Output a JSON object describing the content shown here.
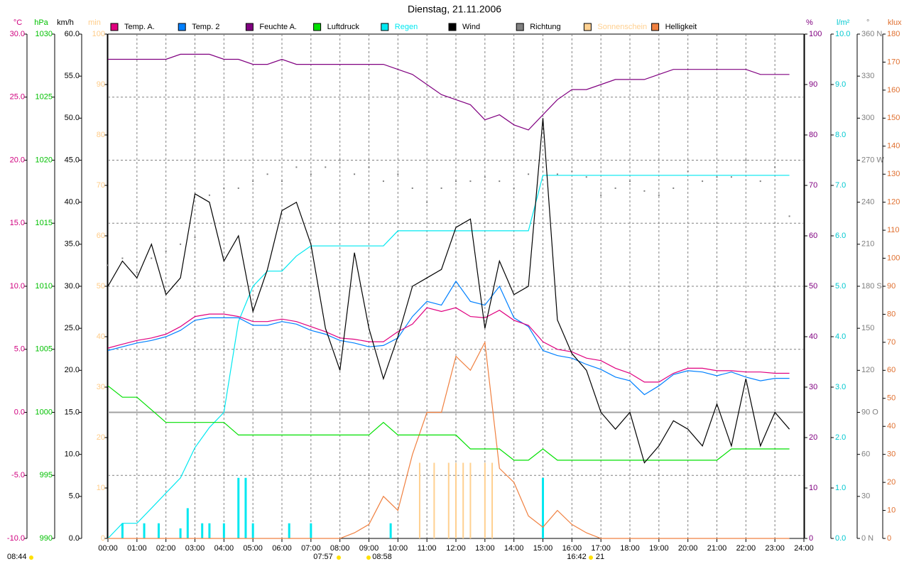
{
  "chart_data": {
    "type": "line",
    "title": "Dienstag, 21.11.2006",
    "grid": true,
    "xlim": [
      0,
      24
    ],
    "xticks": [
      {
        "value": 0,
        "label": "00:00"
      },
      {
        "value": 1,
        "label": "01:00"
      },
      {
        "value": 2,
        "label": "02:00"
      },
      {
        "value": 3,
        "label": "03:00"
      },
      {
        "value": 4,
        "label": "04:00"
      },
      {
        "value": 5,
        "label": "05:00"
      },
      {
        "value": 6,
        "label": "06:00"
      },
      {
        "value": 7,
        "label": "07:00"
      },
      {
        "value": 8,
        "label": "08:00"
      },
      {
        "value": 9,
        "label": "09:00"
      },
      {
        "value": 10,
        "label": "10:00"
      },
      {
        "value": 11,
        "label": "11:00"
      },
      {
        "value": 12,
        "label": "12:00"
      },
      {
        "value": 13,
        "label": "13:00"
      },
      {
        "value": 14,
        "label": "14:00"
      },
      {
        "value": 15,
        "label": "15:00"
      },
      {
        "value": 16,
        "label": "16:00"
      },
      {
        "value": 17,
        "label": "17:00"
      },
      {
        "value": 18,
        "label": "18:00"
      },
      {
        "value": 19,
        "label": "19:00"
      },
      {
        "value": 20,
        "label": "20:00"
      },
      {
        "value": 21,
        "label": "21:00"
      },
      {
        "value": 22,
        "label": "22:00"
      },
      {
        "value": 23,
        "label": "23:00"
      },
      {
        "value": 24,
        "label": "24:00"
      }
    ],
    "x": [
      0,
      0.5,
      1,
      1.5,
      2,
      2.5,
      3,
      3.5,
      4,
      4.5,
      5,
      5.5,
      6,
      6.5,
      7,
      7.5,
      8,
      8.5,
      9,
      9.5,
      10,
      10.5,
      11,
      11.5,
      12,
      12.5,
      13,
      13.5,
      14,
      14.5,
      15,
      15.5,
      16,
      16.5,
      17,
      17.5,
      18,
      18.5,
      19,
      19.5,
      20,
      20.5,
      21,
      21.5,
      22,
      22.5,
      23,
      23.5
    ],
    "axes": [
      {
        "label": "°C",
        "color": "#d0007f",
        "side": "left",
        "lim": [
          -10,
          30
        ],
        "ticks": [
          {
            "value": -10,
            "label": "-10.0"
          },
          {
            "value": -5,
            "label": "-5.0"
          },
          {
            "value": 0,
            "label": "0.0"
          },
          {
            "value": 5,
            "label": "5.0"
          },
          {
            "value": 10,
            "label": "10.0"
          },
          {
            "value": 15,
            "label": "15.0"
          },
          {
            "value": 20,
            "label": "20.0"
          },
          {
            "value": 25,
            "label": "25.0"
          },
          {
            "value": 30,
            "label": "30.0"
          }
        ]
      },
      {
        "label": "hPa",
        "color": "#00c000",
        "side": "left",
        "lim": [
          990,
          1030
        ],
        "ticks": [
          990,
          995,
          1000,
          1005,
          1010,
          1015,
          1020,
          1025,
          1030
        ]
      },
      {
        "label": "km/h",
        "color": "#000000",
        "side": "left",
        "lim": [
          0,
          60
        ],
        "ticks": [
          {
            "value": 0,
            "label": "0.0"
          },
          {
            "value": 5,
            "label": "5.0"
          },
          {
            "value": 10,
            "label": "10.0"
          },
          {
            "value": 15,
            "label": "15.0"
          },
          {
            "value": 20,
            "label": "20.0"
          },
          {
            "value": 25,
            "label": "25.0"
          },
          {
            "value": 30,
            "label": "30.0"
          },
          {
            "value": 35,
            "label": "35.0"
          },
          {
            "value": 40,
            "label": "40.0"
          },
          {
            "value": 45,
            "label": "45.0"
          },
          {
            "value": 50,
            "label": "50.0"
          },
          {
            "value": 55,
            "label": "55.0"
          },
          {
            "value": 60,
            "label": "60.0"
          }
        ]
      },
      {
        "label": "min",
        "color": "#ffcc88",
        "side": "left",
        "lim": [
          0,
          100
        ],
        "ticks": [
          0,
          10,
          20,
          30,
          40,
          50,
          60,
          70,
          80,
          90,
          100
        ]
      },
      {
        "label": "%",
        "color": "#800080",
        "side": "right",
        "lim": [
          0,
          100
        ],
        "ticks": [
          0,
          10,
          20,
          30,
          40,
          50,
          60,
          70,
          80,
          90,
          100
        ]
      },
      {
        "label": "l/m²",
        "color": "#00c8d0",
        "side": "right",
        "lim": [
          0,
          10
        ],
        "ticks": [
          {
            "value": 0,
            "label": "0.0"
          },
          {
            "value": 1,
            "label": "1.0"
          },
          {
            "value": 2,
            "label": "2.0"
          },
          {
            "value": 3,
            "label": "3.0"
          },
          {
            "value": 4,
            "label": "4.0"
          },
          {
            "value": 5,
            "label": "5.0"
          },
          {
            "value": 6,
            "label": "6.0"
          },
          {
            "value": 7,
            "label": "7.0"
          },
          {
            "value": 8,
            "label": "8.0"
          },
          {
            "value": 9,
            "label": "9.0"
          },
          {
            "value": 10,
            "label": "10.0"
          }
        ]
      },
      {
        "label": "°",
        "color": "#808080",
        "side": "right",
        "lim": [
          0,
          360
        ],
        "ticks": [
          {
            "value": 0,
            "label": "0 N"
          },
          30,
          60,
          {
            "value": 90,
            "label": "90 O"
          },
          120,
          150,
          {
            "value": 180,
            "label": "180 S"
          },
          210,
          240,
          {
            "value": 270,
            "label": "270 W"
          },
          300,
          330,
          {
            "value": 360,
            "label": "360 N"
          }
        ]
      },
      {
        "label": "klux",
        "color": "#e07030",
        "side": "right",
        "lim": [
          0,
          180
        ],
        "ticks": [
          0,
          10,
          20,
          30,
          40,
          50,
          60,
          70,
          80,
          90,
          100,
          110,
          120,
          130,
          140,
          150,
          160,
          170,
          180
        ]
      }
    ],
    "series": [
      {
        "name": "Temp. A.",
        "color": "#e0007f",
        "axis": 0,
        "style": "line",
        "values": [
          5.1,
          5.4,
          5.7,
          5.9,
          6.2,
          6.8,
          7.6,
          7.8,
          7.8,
          7.6,
          7.2,
          7.2,
          7.4,
          7.2,
          6.8,
          6.4,
          5.9,
          5.8,
          5.6,
          5.6,
          6.4,
          7.0,
          8.3,
          8.0,
          8.3,
          7.6,
          7.5,
          8.1,
          7.3,
          6.9,
          5.6,
          5.0,
          4.8,
          4.3,
          4.1,
          3.5,
          3.1,
          2.4,
          2.4,
          3.1,
          3.5,
          3.5,
          3.3,
          3.3,
          3.2,
          3.2,
          3.1,
          3.1
        ]
      },
      {
        "name": "Temp. 2",
        "color": "#0080ff",
        "axis": 0,
        "style": "line",
        "values": [
          4.9,
          5.2,
          5.5,
          5.7,
          6.0,
          6.5,
          7.3,
          7.5,
          7.5,
          7.5,
          6.9,
          6.9,
          7.2,
          7.0,
          6.5,
          6.2,
          5.7,
          5.5,
          5.2,
          5.3,
          5.9,
          7.6,
          8.8,
          8.5,
          10.4,
          8.8,
          8.5,
          10.0,
          7.5,
          6.8,
          4.9,
          4.5,
          4.3,
          3.8,
          3.4,
          2.8,
          2.5,
          1.4,
          2.1,
          3.0,
          3.3,
          3.2,
          2.9,
          3.2,
          2.8,
          2.5,
          2.7,
          2.7
        ]
      },
      {
        "name": "Feuchte A.",
        "color": "#800080",
        "axis": 4,
        "style": "line",
        "values": [
          95,
          95,
          95,
          95,
          95,
          96,
          96,
          96,
          95,
          95,
          94,
          94,
          95,
          94,
          94,
          94,
          94,
          94,
          94,
          94,
          93,
          92,
          90,
          88,
          87,
          86,
          83,
          84,
          82,
          81,
          84,
          87,
          89,
          89,
          90,
          91,
          91,
          91,
          92,
          93,
          93,
          93,
          93,
          93,
          93,
          92,
          92,
          92
        ]
      },
      {
        "name": "Luftdruck",
        "color": "#00e000",
        "axis": 1,
        "style": "line",
        "values": [
          1002.1,
          1001.2,
          1001.2,
          1000.2,
          999.2,
          999.2,
          999.2,
          999.2,
          999.2,
          998.2,
          998.2,
          998.2,
          998.2,
          998.2,
          998.2,
          998.2,
          998.2,
          998.2,
          998.2,
          999.2,
          998.2,
          998.2,
          998.2,
          998.2,
          998.2,
          997.1,
          997.1,
          997.1,
          996.2,
          996.2,
          997.1,
          996.2,
          996.2,
          996.2,
          996.2,
          996.2,
          996.2,
          996.2,
          996.2,
          996.2,
          996.2,
          996.2,
          996.2,
          997.1,
          997.1,
          997.1,
          997.1,
          997.1
        ]
      },
      {
        "name": "Regen",
        "color": "#00e8f0",
        "axis": 5,
        "style": "line",
        "values": [
          0,
          0.3,
          0.3,
          0.6,
          0.9,
          1.2,
          1.8,
          2.2,
          2.5,
          4.3,
          5.0,
          5.3,
          5.3,
          5.6,
          5.8,
          5.8,
          5.8,
          5.8,
          5.8,
          5.8,
          6.1,
          6.1,
          6.1,
          6.1,
          6.1,
          6.1,
          6.1,
          6.1,
          6.1,
          6.1,
          7.2,
          7.2,
          7.2,
          7.2,
          7.2,
          7.2,
          7.2,
          7.2,
          7.2,
          7.2,
          7.2,
          7.2,
          7.2,
          7.2,
          7.2,
          7.2,
          7.2,
          7.2
        ],
        "impulses": {
          "x": [
            0.5,
            1.25,
            1.75,
            2.5,
            2.75,
            3.25,
            3.5,
            4,
            4.5,
            4.75,
            5,
            6.25,
            7,
            9.75,
            15
          ],
          "values": [
            0.3,
            0.3,
            0.3,
            0.2,
            0.6,
            0.3,
            0.3,
            0.3,
            1.2,
            1.2,
            0.3,
            0.3,
            0.3,
            0.3,
            1.2
          ]
        }
      },
      {
        "name": "Wind",
        "color": "#000000",
        "axis": 2,
        "style": "line",
        "values": [
          30,
          33,
          31,
          35,
          29,
          31,
          41,
          40,
          33,
          36,
          27,
          32,
          39,
          40,
          35,
          25,
          20,
          34,
          25,
          19,
          24,
          30,
          31,
          32,
          37,
          38,
          25,
          33,
          29,
          30,
          50,
          26,
          22,
          20,
          15,
          13,
          15,
          9,
          11,
          14,
          13,
          11,
          16,
          11,
          19,
          11,
          15,
          13
        ]
      },
      {
        "name": "Richtung",
        "color": "#808080",
        "axis": 6,
        "style": "dots",
        "values": [
          195,
          200,
          190,
          200,
          205,
          210,
          215,
          245,
          250,
          250,
          255,
          260,
          255,
          265,
          260,
          265,
          270,
          260,
          265,
          255,
          260,
          250,
          240,
          250,
          255,
          255,
          258,
          255,
          250,
          260,
          265,
          260,
          262,
          258,
          245,
          250,
          255,
          248,
          245,
          250,
          262,
          255,
          258,
          258,
          270,
          255,
          265,
          230
        ]
      },
      {
        "name": "Sonnenschein",
        "color": "#ffd090",
        "axis": 3,
        "style": "bars",
        "x": [
          10.75,
          11.25,
          11.75,
          12,
          12.25,
          12.5,
          13,
          13.25
        ],
        "values": [
          15,
          15,
          15,
          15,
          15,
          15,
          15,
          15
        ]
      },
      {
        "name": "Helligkeit",
        "color": "#f08040",
        "axis": 7,
        "style": "line",
        "values": [
          0,
          0,
          0,
          0,
          0,
          0,
          0,
          0,
          0,
          0,
          0,
          0,
          0,
          0,
          0,
          0,
          0,
          2,
          5,
          15,
          10,
          30,
          45,
          45,
          65,
          60,
          70,
          25,
          20,
          8,
          4,
          10,
          5,
          2,
          0,
          0,
          0,
          0,
          0,
          0,
          0,
          0,
          0,
          0,
          0,
          0,
          0,
          0
        ]
      }
    ],
    "annotations": [
      "08:44",
      "07:57",
      "08:58",
      "16:42",
      "21"
    ]
  }
}
